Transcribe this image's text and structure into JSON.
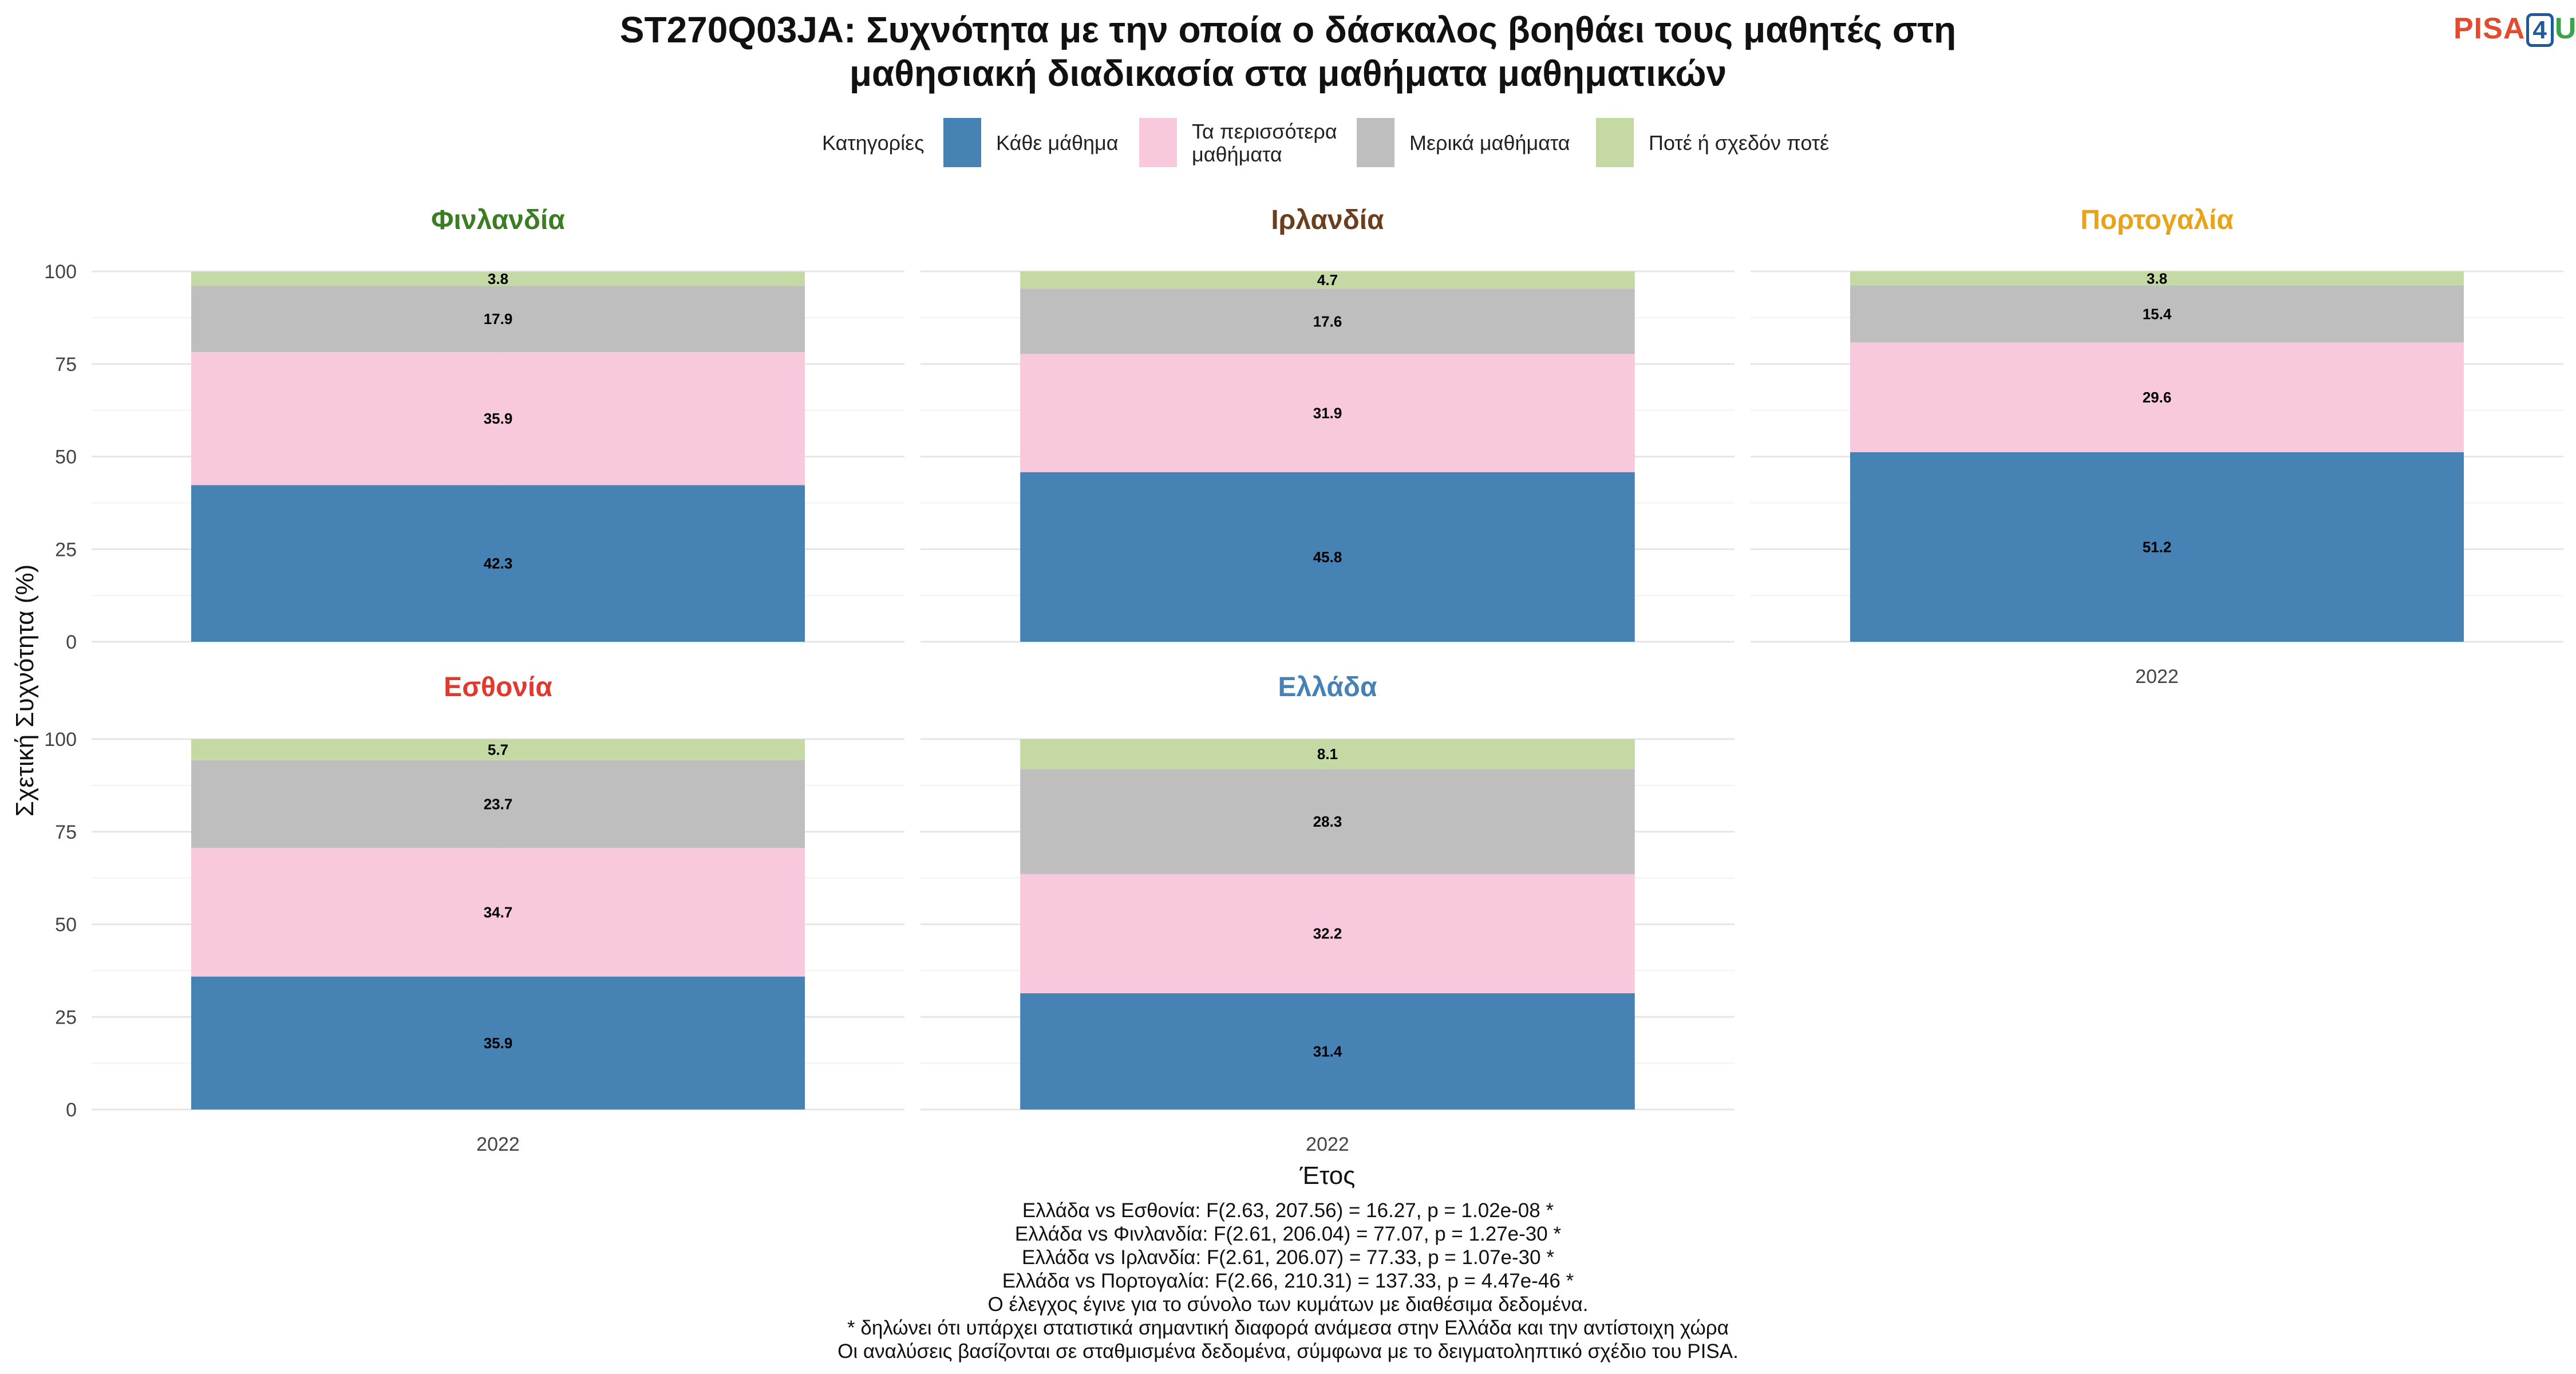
{
  "title_lines": [
    "ST270Q03JA: Συχνότητα με την οποία ο δάσκαλος βοηθάει τους μαθητές στη",
    "μαθησιακή διαδικασία στα μαθήματα μαθηματικών"
  ],
  "logo": {
    "part1": "PISA",
    "part2": "4",
    "part3": "U"
  },
  "legend": {
    "title": "Κατηγορίες",
    "items": [
      {
        "label_lines": [
          "Κάθε μάθημα"
        ],
        "color": "#4682b4"
      },
      {
        "label_lines": [
          "Τα περισσότερα",
          "μαθήματα"
        ],
        "color": "#f8c8dc"
      },
      {
        "label_lines": [
          "Μερικά μαθήματα"
        ],
        "color": "#bebebe"
      },
      {
        "label_lines": [
          "Ποτέ ή σχεδόν ποτέ"
        ],
        "color": "#c5d9a5"
      }
    ]
  },
  "chart_data": {
    "type": "bar",
    "stacked": true,
    "xlabel": "Έτος",
    "ylabel": "Σχετική Συχνότητα (%)",
    "ylim": [
      0,
      100
    ],
    "yticks": [
      0,
      25,
      50,
      75,
      100
    ],
    "categories": [
      "2022"
    ],
    "series_names": [
      "Κάθε μάθημα",
      "Τα περισσότερα μαθήματα",
      "Μερικά μαθήματα",
      "Ποτέ ή σχεδόν ποτέ"
    ],
    "series_colors": [
      "#4682b4",
      "#f8c8dc",
      "#bebebe",
      "#c5d9a5"
    ],
    "grid": true,
    "legend_position": "top",
    "panels": [
      {
        "country": "Φινλανδία",
        "title_color": "#3a7d22",
        "values": [
          42.3,
          35.9,
          17.9,
          3.8
        ]
      },
      {
        "country": "Ιρλανδία",
        "title_color": "#6b3f1d",
        "values": [
          45.8,
          31.9,
          17.6,
          4.7
        ]
      },
      {
        "country": "Πορτογαλία",
        "title_color": "#e8a317",
        "values": [
          51.2,
          29.6,
          15.4,
          3.8
        ]
      },
      {
        "country": "Εσθονία",
        "title_color": "#e03a2f",
        "values": [
          35.9,
          34.7,
          23.7,
          5.7
        ]
      },
      {
        "country": "Ελλάδα",
        "title_color": "#4682b4",
        "values": [
          31.4,
          32.2,
          28.3,
          8.1
        ]
      }
    ]
  },
  "footer_lines": [
    "Ελλάδα vs Εσθονία: F(2.63, 207.56) = 16.27, p = 1.02e-08 *",
    "Ελλάδα vs Φινλανδία: F(2.61, 206.04) = 77.07, p = 1.27e-30 *",
    "Ελλάδα vs Ιρλανδία: F(2.61, 206.07) = 77.33, p = 1.07e-30 *",
    "Ελλάδα vs Πορτογαλία: F(2.66, 210.31) = 137.33, p = 4.47e-46 *",
    "Ο έλεγχος έγινε για το σύνολο των κυμάτων με διαθέσιμα δεδομένα.",
    "* δηλώνει ότι υπάρχει στατιστικά σημαντική διαφορά ανάμεσα στην Ελλάδα και την αντίστοιχη χώρα",
    "Οι αναλύσεις βασίζονται σε σταθμισμένα δεδομένα, σύμφωνα με το δειγματοληπτικό σχέδιο του PISA."
  ]
}
